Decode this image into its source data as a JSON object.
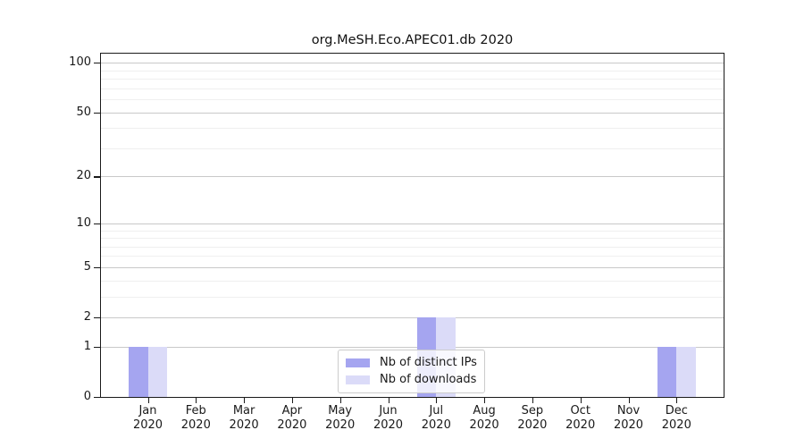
{
  "title": "org.MeSH.Eco.APEC01.db 2020",
  "chart_data": {
    "type": "bar",
    "title": "org.MeSH.Eco.APEC01.db 2020",
    "yscale": "log1p",
    "ylim": [
      0,
      113.5
    ],
    "grid": true,
    "legend_position": "lower center",
    "categories": [
      "Jan",
      "Feb",
      "Mar",
      "Apr",
      "May",
      "Jun",
      "Jul",
      "Aug",
      "Sep",
      "Oct",
      "Nov",
      "Dec"
    ],
    "category_year": "2020",
    "series": [
      {
        "name": "Nb of distinct IPs",
        "color": "#a5a5f0",
        "values": [
          1,
          0,
          0,
          0,
          0,
          0,
          2,
          0,
          0,
          0,
          0,
          1
        ]
      },
      {
        "name": "Nb of downloads",
        "color": "#dbdbf8",
        "values": [
          1,
          0,
          0,
          0,
          0,
          0,
          2,
          0,
          0,
          0,
          0,
          1
        ]
      }
    ],
    "y_tick_labels": [
      "100",
      "50",
      "20",
      "10",
      "5",
      "2",
      "1",
      "0"
    ],
    "y_tick_values": [
      100,
      50,
      20,
      10,
      5,
      2,
      1,
      0
    ],
    "minor_gridline_values": [
      3,
      4,
      6,
      7,
      8,
      9,
      30,
      40,
      60,
      70,
      80,
      90
    ]
  },
  "style": {
    "axis_color": "#1a1a1a",
    "major_grid_color": "#c9c9c9",
    "minor_grid_color": "#efefef",
    "bar_color_distinct_ips": "#a5a5f0",
    "bar_color_downloads": "#dbdbf8",
    "legend_border_color": "#cccccc",
    "text_color": "#191919"
  }
}
